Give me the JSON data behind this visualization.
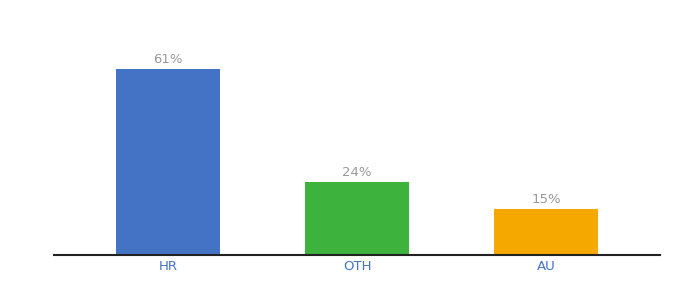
{
  "categories": [
    "HR",
    "OTH",
    "AU"
  ],
  "values": [
    61,
    24,
    15
  ],
  "bar_colors": [
    "#4472c4",
    "#3db33d",
    "#f5a800"
  ],
  "labels": [
    "61%",
    "24%",
    "15%"
  ],
  "ylim": [
    0,
    72
  ],
  "background_color": "#ffffff",
  "label_color": "#999999",
  "tick_color": "#4472c4",
  "label_fontsize": 9.5,
  "tick_fontsize": 9.5,
  "bar_width": 0.55,
  "bar_positions": [
    0,
    1,
    2
  ],
  "xlim": [
    -0.6,
    2.6
  ],
  "bottom_spine_color": "#222222",
  "bottom_spine_lw": 1.5
}
